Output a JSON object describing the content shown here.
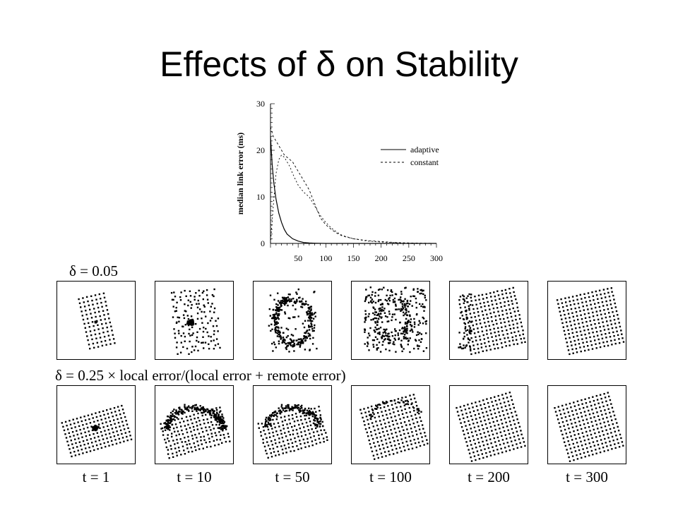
{
  "slide": {
    "title": "Effects of δ on Stability"
  },
  "chart_data": [
    {
      "type": "line",
      "title": "",
      "xlabel": "",
      "ylabel": "median link error (ms)",
      "xlim": [
        0,
        300
      ],
      "ylim": [
        0,
        30
      ],
      "x_ticks": [
        50,
        100,
        150,
        200,
        250,
        300
      ],
      "y_ticks": [
        0,
        10,
        20,
        30
      ],
      "grid": false,
      "legend_position": "top-right",
      "series": [
        {
          "name": "adaptive",
          "style": "solid",
          "x": [
            0,
            3,
            6,
            10,
            15,
            20,
            25,
            30,
            40,
            50,
            60,
            70,
            80,
            100,
            150,
            200,
            250,
            300
          ],
          "y": [
            23,
            17,
            13,
            9.5,
            6.5,
            4.5,
            3,
            2,
            1,
            0.5,
            0.2,
            0.1,
            0.05,
            0,
            0,
            0,
            0,
            0
          ]
        },
        {
          "name": "constant",
          "style": "dashed",
          "x": [
            0,
            5,
            10,
            15,
            20,
            25,
            30,
            35,
            40,
            45,
            50,
            55,
            60,
            65,
            70,
            75,
            80,
            85,
            90,
            100,
            110,
            120,
            130,
            150,
            175,
            200,
            225,
            250,
            275,
            300
          ],
          "y": [
            25,
            23,
            22,
            21,
            20,
            19,
            18.5,
            18,
            17.5,
            16.5,
            15.5,
            14.5,
            13.5,
            12.5,
            11.5,
            10,
            8.5,
            7,
            5.5,
            4,
            3,
            2.2,
            1.6,
            1,
            0.6,
            0.4,
            0.2,
            0.1,
            0.05,
            0
          ]
        },
        {
          "name": "constant",
          "style": "dotted",
          "x": [
            0,
            5,
            10,
            15,
            20,
            25,
            30,
            35,
            40,
            50,
            60,
            70,
            80,
            90,
            100,
            110,
            120,
            130,
            150,
            175,
            200,
            225,
            250,
            275,
            300
          ],
          "y": [
            0,
            8,
            15,
            18,
            19,
            18.5,
            17.5,
            16.5,
            15,
            12.5,
            11,
            10,
            8,
            6,
            4.5,
            3.3,
            2.4,
            1.7,
            1,
            0.5,
            0.3,
            0.15,
            0.05,
            0,
            0
          ]
        }
      ]
    },
    {
      "type": "scatter",
      "row_label": "δ = 0.05",
      "panels": [
        {
          "state": "tight grid with dense central cluster, narrow rotated rectangle"
        },
        {
          "state": "dense central clump with wider scatter"
        },
        {
          "state": "scattered ring"
        },
        {
          "state": "diffuse scatter"
        },
        {
          "state": "rotated lattice emerging"
        },
        {
          "state": "rotated lattice"
        }
      ]
    },
    {
      "type": "scatter",
      "row_label": "δ = 0.25 × local error/(local error + remote error)",
      "panels": [
        {
          "state": "small dense cluster within rotated lattice"
        },
        {
          "state": "noisy arc above lattice"
        },
        {
          "state": "scattered arc with lattice"
        },
        {
          "state": "lattice with slight noise"
        },
        {
          "state": "clean rotated lattice"
        },
        {
          "state": "clean rotated lattice"
        }
      ]
    }
  ],
  "time_labels": [
    "t = 1",
    "t = 10",
    "t = 50",
    "t = 100",
    "t = 200",
    "t = 300"
  ],
  "legend": [
    {
      "label": "adaptive",
      "style": "solid"
    },
    {
      "label": "constant",
      "style": "dashed"
    }
  ]
}
